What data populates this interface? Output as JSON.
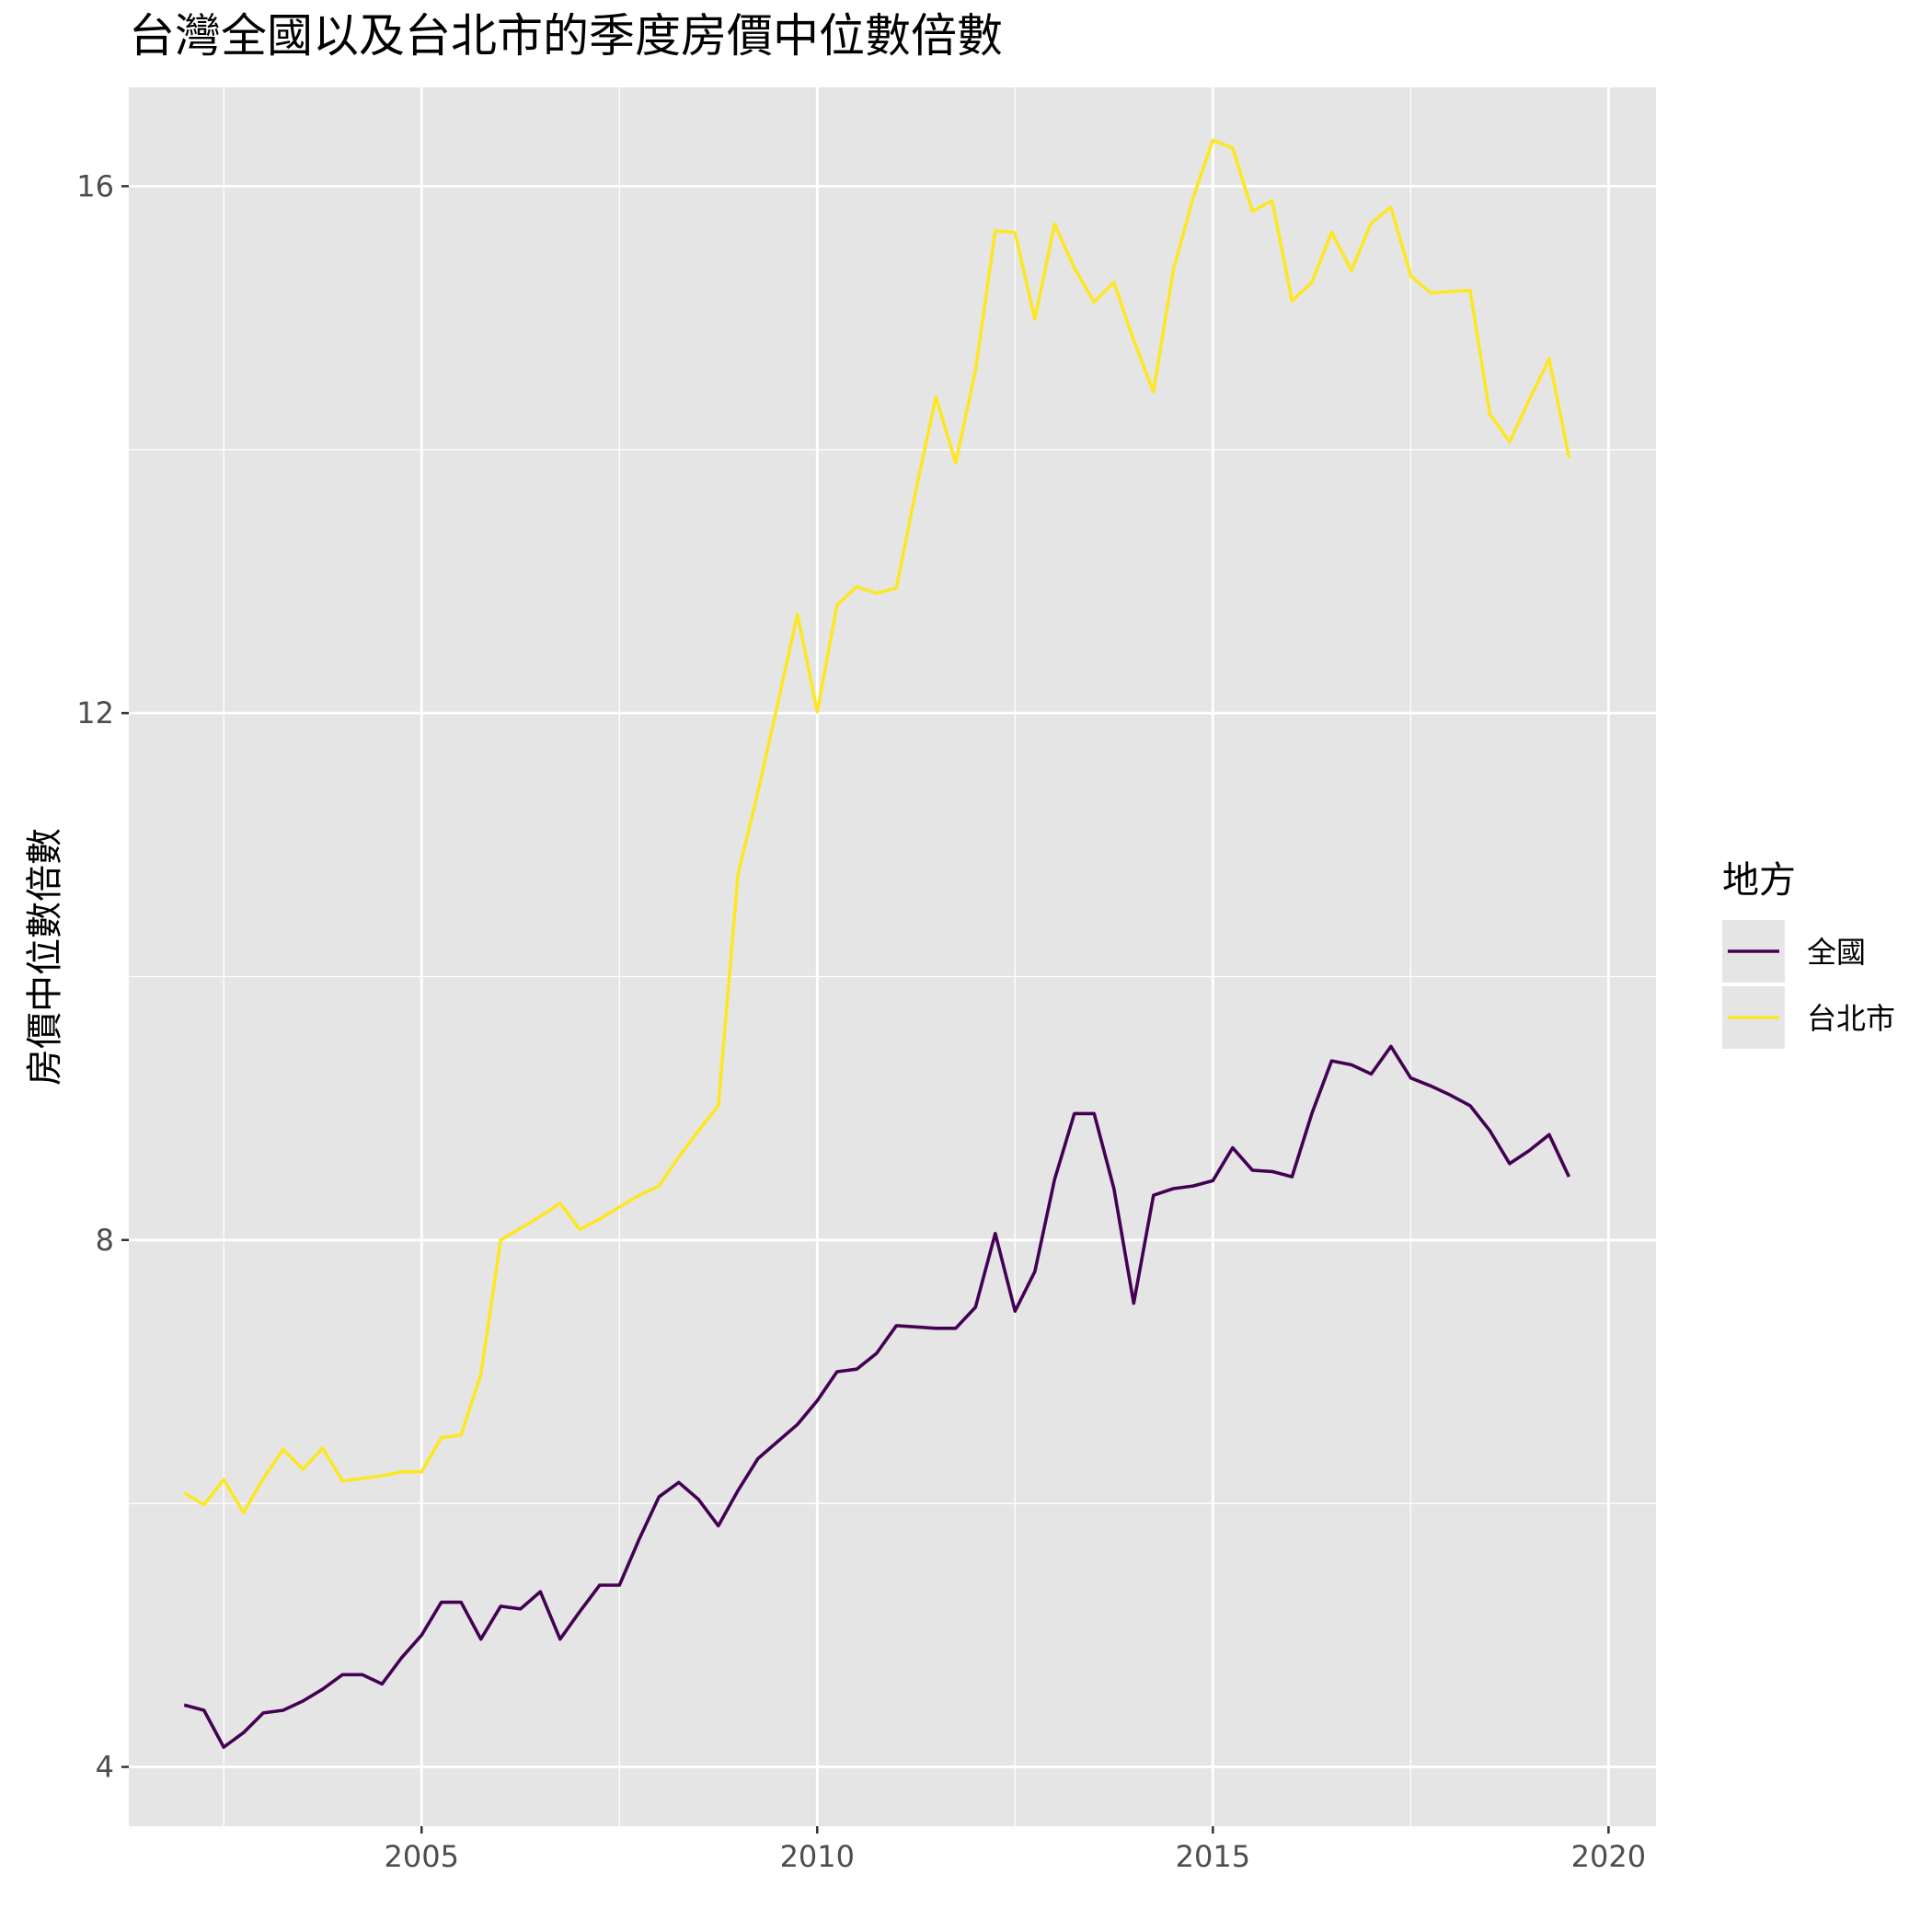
{
  "chart_data": {
    "type": "line",
    "title": "台灣全國以及台北市的季度房價中位數倍數",
    "xlabel": "",
    "ylabel": "房價中位數倍數",
    "xlim": [
      2001.3,
      2020.6
    ],
    "ylim": [
      3.55,
      16.75
    ],
    "x_ticks": [
      "2005",
      "2010",
      "2015",
      "2020"
    ],
    "y_ticks": [
      "4",
      "8",
      "12",
      "16"
    ],
    "grid": true,
    "legend": {
      "title": "地方",
      "position": "right"
    },
    "colors": {
      "全國": "#440154",
      "台北市": "#FDE725",
      "panel": "#E5E5E5",
      "grid": "#FFFFFF"
    },
    "x": [
      2002.0,
      2002.25,
      2002.5,
      2002.75,
      2003.0,
      2003.25,
      2003.5,
      2003.75,
      2004.0,
      2004.25,
      2004.5,
      2004.75,
      2005.0,
      2005.25,
      2005.5,
      2005.75,
      2006.0,
      2006.25,
      2006.5,
      2006.75,
      2007.0,
      2007.25,
      2007.5,
      2007.75,
      2008.0,
      2008.25,
      2008.5,
      2008.75,
      2009.0,
      2009.25,
      2009.5,
      2009.75,
      2010.0,
      2010.25,
      2010.5,
      2010.75,
      2011.0,
      2011.25,
      2011.5,
      2011.75,
      2012.0,
      2012.25,
      2012.5,
      2012.75,
      2013.0,
      2013.25,
      2013.5,
      2013.75,
      2014.0,
      2014.25,
      2014.5,
      2014.75,
      2015.0,
      2015.25,
      2015.5,
      2015.75,
      2016.0,
      2016.25,
      2016.5,
      2016.75,
      2017.0,
      2017.25,
      2017.5,
      2017.75,
      2018.0,
      2018.25,
      2018.5,
      2018.75,
      2019.0,
      2019.25,
      2019.5
    ],
    "series": [
      {
        "name": "全國",
        "values": [
          4.47,
          4.43,
          4.15,
          4.26,
          4.41,
          4.43,
          4.5,
          4.59,
          4.7,
          4.7,
          4.63,
          4.83,
          5.0,
          5.25,
          5.25,
          4.97,
          5.22,
          5.2,
          5.33,
          4.97,
          5.18,
          5.38,
          5.38,
          5.73,
          6.05,
          6.16,
          6.03,
          5.83,
          6.1,
          6.34,
          6.47,
          6.6,
          6.78,
          7.0,
          7.02,
          7.14,
          7.35,
          7.34,
          7.33,
          7.33,
          7.49,
          8.05,
          7.46,
          7.76,
          8.46,
          8.96,
          8.96,
          8.39,
          7.52,
          8.34,
          8.39,
          8.41,
          8.45,
          8.7,
          8.53,
          8.52,
          8.48,
          8.96,
          9.36,
          9.33,
          9.26,
          9.47,
          9.23,
          9.17,
          9.1,
          9.02,
          8.83,
          8.58,
          8.68,
          8.8,
          8.48
        ]
      },
      {
        "name": "台北市",
        "values": [
          6.08,
          5.99,
          6.18,
          5.93,
          6.19,
          6.41,
          6.26,
          6.42,
          6.17,
          6.19,
          6.21,
          6.24,
          6.24,
          6.5,
          6.52,
          6.98,
          8.0,
          8.09,
          8.18,
          8.28,
          8.08,
          8.16,
          8.25,
          8.34,
          8.41,
          8.63,
          8.83,
          9.02,
          10.78,
          11.4,
          12.07,
          12.75,
          12.01,
          12.82,
          12.96,
          12.91,
          12.95,
          13.7,
          14.4,
          13.9,
          14.6,
          15.66,
          15.65,
          14.99,
          15.71,
          15.38,
          15.12,
          15.27,
          14.83,
          14.44,
          15.36,
          15.91,
          16.35,
          16.29,
          15.81,
          15.89,
          15.13,
          15.27,
          15.65,
          15.36,
          15.72,
          15.84,
          15.32,
          15.19,
          15.2,
          15.21,
          14.27,
          14.06,
          14.38,
          14.69,
          13.94
        ]
      }
    ]
  }
}
